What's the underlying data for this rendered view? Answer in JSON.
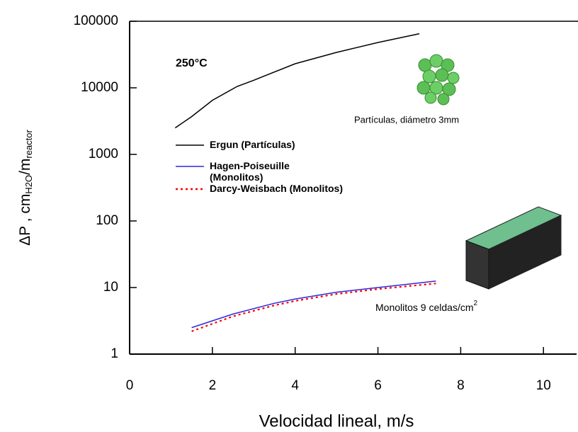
{
  "chart_data": {
    "type": "line",
    "y_scale": "log",
    "x_label": "Velocidad lineal, m/s",
    "y_label": {
      "main": "ΔP , cm",
      "sub1": "H2O",
      "mid": "/m",
      "sub2": "reactor"
    },
    "xlim": [
      0,
      10.8
    ],
    "xticks": [
      0,
      2,
      4,
      6,
      8,
      10
    ],
    "ylim": [
      1,
      100000
    ],
    "yticks": [
      1,
      10,
      100,
      1000,
      10000,
      100000
    ],
    "annotations": {
      "temperature": "250°C",
      "particles": "Partículas, diámetro 3mm",
      "monoliths": "Monolitos 9 celdas/cm",
      "monoliths_sup": "2"
    },
    "series": [
      {
        "name": "Ergun (Partículas)",
        "color": "#000000",
        "dash": "solid",
        "x": [
          1.1,
          1.5,
          2,
          2.6,
          3,
          4,
          5,
          6,
          7
        ],
        "values": [
          2500,
          3700,
          6500,
          10500,
          13000,
          23000,
          34000,
          48000,
          65000
        ]
      },
      {
        "name": "Hagen-Poiseuille (Monolitos)",
        "color": "#2a2ae0",
        "dash": "solid",
        "x": [
          1.5,
          2.5,
          3.5,
          4,
          5,
          6,
          7.4
        ],
        "values": [
          2.5,
          4,
          5.8,
          6.7,
          8.5,
          10,
          12.5
        ]
      },
      {
        "name": "Darcy-Weisbach (Monolitos)",
        "color": "#ff0000",
        "dash": "dotted",
        "x": [
          1.5,
          2.5,
          3.5,
          4,
          5,
          6,
          7.4
        ],
        "values": [
          2.2,
          3.7,
          5.4,
          6.3,
          8,
          9.5,
          11.5
        ]
      }
    ]
  }
}
